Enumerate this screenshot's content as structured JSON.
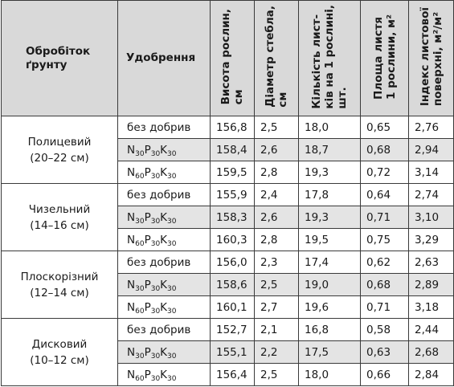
{
  "headers": {
    "treatment": [
      "Обробіток",
      "ґрунту"
    ],
    "fertilizer": "Удобрення",
    "height": [
      "Висота рослин,",
      "см"
    ],
    "diameter": [
      "Діаметр стебла,",
      "см"
    ],
    "leaves": [
      "Кількість лист-",
      "ків на 1 рослині,",
      "шт."
    ],
    "leaf_area": [
      "Площа листя",
      "1 рослини, м²"
    ],
    "lai": [
      "Індекс листової",
      "поверхні, м²/м²"
    ]
  },
  "fert_labels": {
    "none": "без добрив",
    "n30": {
      "N": "N",
      "n_sub": "30",
      "P": "P",
      "p_sub": "30",
      "K": "K",
      "k_sub": "30"
    },
    "n60": {
      "N": "N",
      "n_sub": "60",
      "P": "P",
      "p_sub": "30",
      "K": "K",
      "k_sub": "30"
    }
  },
  "groups": [
    {
      "name": "Полицевий",
      "depth": "(20–22 см)",
      "rows": [
        [
          "156,8",
          "2,5",
          "18,0",
          "0,65",
          "2,76"
        ],
        [
          "158,4",
          "2,6",
          "18,7",
          "0,68",
          "2,94"
        ],
        [
          "159,5",
          "2,8",
          "19,3",
          "0,72",
          "3,14"
        ]
      ]
    },
    {
      "name": "Чизельний",
      "depth": "(14–16 см)",
      "rows": [
        [
          "155,9",
          "2,4",
          "17,8",
          "0,64",
          "2,74"
        ],
        [
          "158,3",
          "2,6",
          "19,3",
          "0,71",
          "3,10"
        ],
        [
          "160,3",
          "2,8",
          "19,5",
          "0,75",
          "3,29"
        ]
      ]
    },
    {
      "name": "Плоскорізний",
      "depth": "(12–14 см)",
      "rows": [
        [
          "156,0",
          "2,3",
          "17,4",
          "0,62",
          "2,63"
        ],
        [
          "158,6",
          "2,5",
          "19,0",
          "0,68",
          "2,89"
        ],
        [
          "160,1",
          "2,7",
          "19,6",
          "0,71",
          "3,18"
        ]
      ]
    },
    {
      "name": "Дисковий",
      "depth": "(10–12 см)",
      "rows": [
        [
          "152,7",
          "2,1",
          "16,8",
          "0,58",
          "2,44"
        ],
        [
          "155,1",
          "2,2",
          "17,5",
          "0,63",
          "2,68"
        ],
        [
          "156,4",
          "2,5",
          "18,0",
          "0,66",
          "2,84"
        ]
      ]
    }
  ]
}
